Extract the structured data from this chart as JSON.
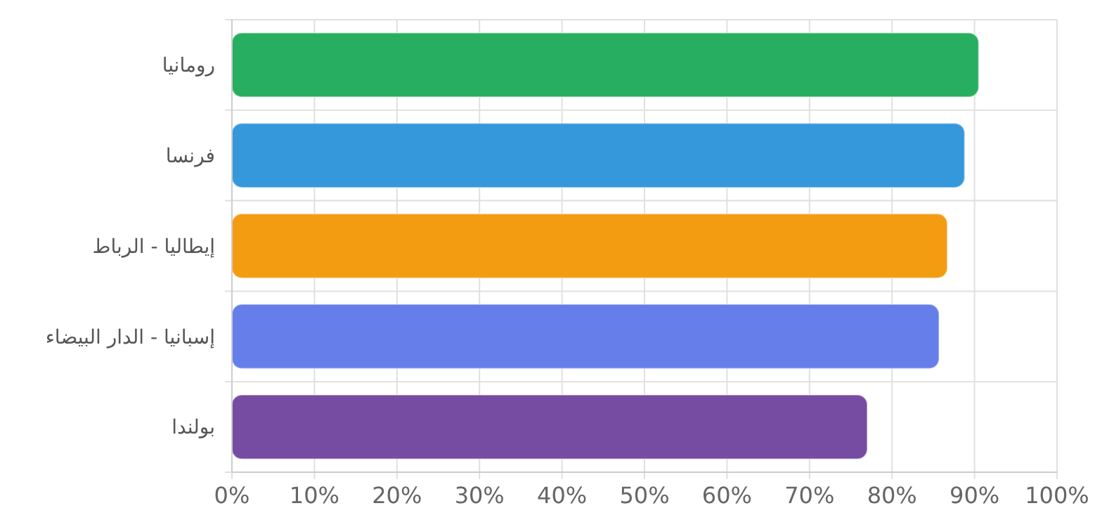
{
  "chart_data": {
    "type": "bar",
    "orientation": "horizontal",
    "categories": [
      "رومانيا",
      "فرنسا",
      "إيطاليا - الرباط",
      "إسبانيا - الدار البيضاء",
      "بولندا"
    ],
    "values": [
      90.5,
      88.8,
      86.7,
      85.7,
      77
    ],
    "colors": [
      "#27ae60",
      "#3498db",
      "#f39c12",
      "#667eea",
      "#764ba2"
    ],
    "xlim": [
      0,
      100
    ],
    "xticks": [
      {
        "value": 0,
        "label": "0%"
      },
      {
        "value": 10,
        "label": "10%"
      },
      {
        "value": 20,
        "label": "20%"
      },
      {
        "value": 30,
        "label": "30%"
      },
      {
        "value": 40,
        "label": "40%"
      },
      {
        "value": 50,
        "label": "50%"
      },
      {
        "value": 60,
        "label": "60%"
      },
      {
        "value": 70,
        "label": "70%"
      },
      {
        "value": 80,
        "label": "80%"
      },
      {
        "value": 90,
        "label": "90%"
      },
      {
        "value": 100,
        "label": "100%"
      }
    ],
    "grid": true
  }
}
